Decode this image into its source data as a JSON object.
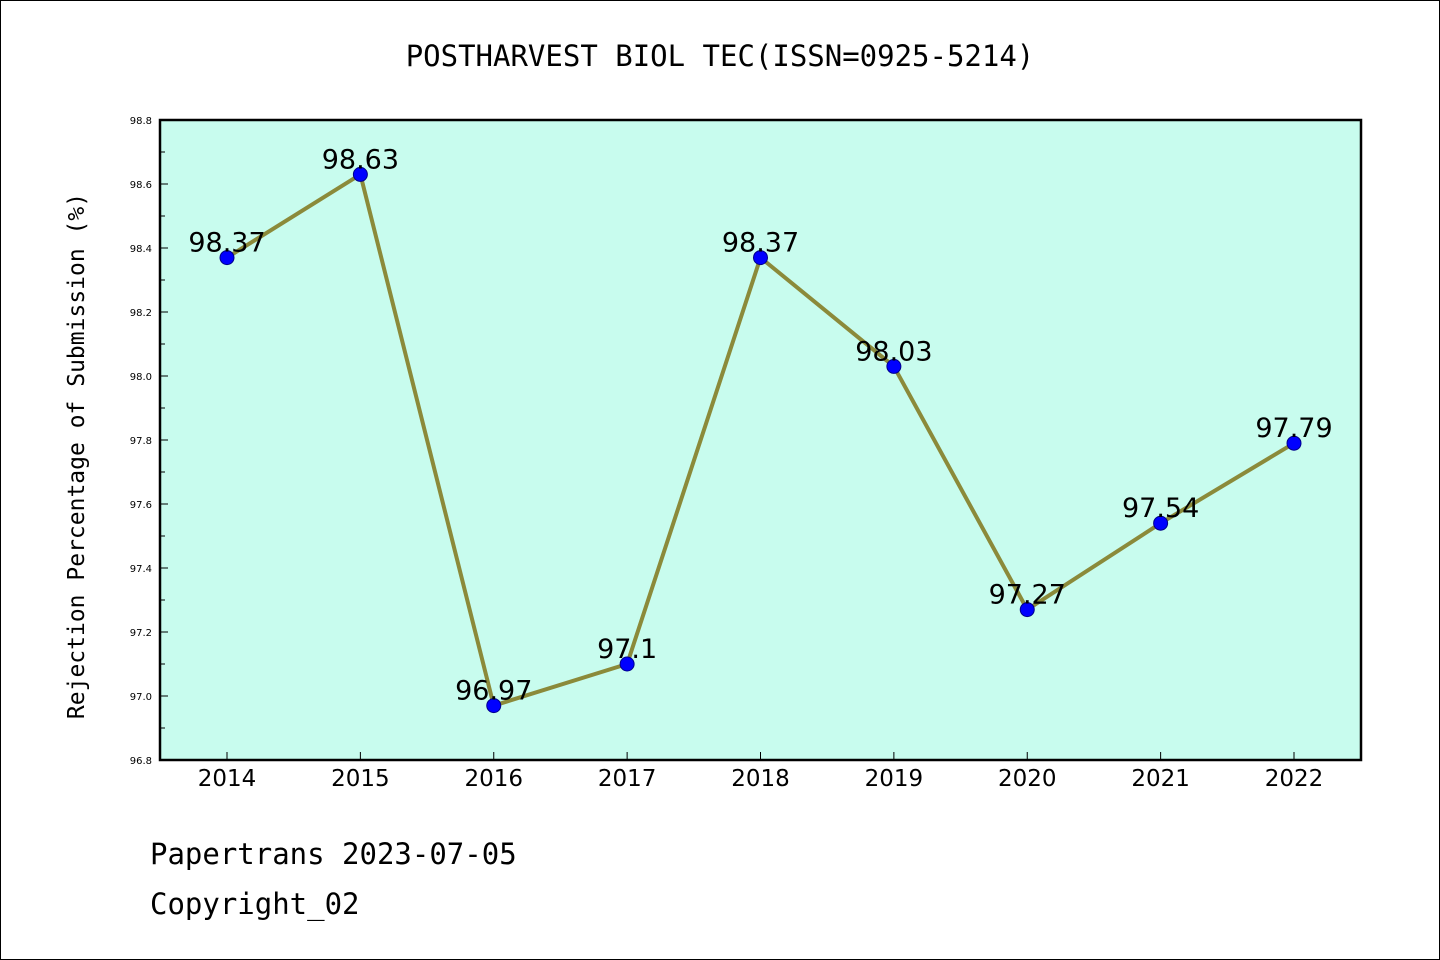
{
  "chart_data": {
    "type": "line",
    "title": "POSTHARVEST BIOL TEC(ISSN=0925-5214)",
    "ylabel": "Rejection Percentage of Submission (%)",
    "xlabel": "",
    "categories": [
      "2014",
      "2015",
      "2016",
      "2017",
      "2018",
      "2019",
      "2020",
      "2021",
      "2022"
    ],
    "values": [
      98.37,
      98.63,
      96.97,
      97.1,
      98.37,
      98.03,
      97.27,
      97.54,
      97.79
    ],
    "data_labels": [
      "98.37",
      "98.63",
      "96.97",
      "97.1",
      "98.37",
      "98.03",
      "97.27",
      "97.54",
      "97.79"
    ],
    "ylim": [
      96.8,
      98.8
    ],
    "yticks": [
      "96.8",
      "97.0",
      "97.2",
      "97.4",
      "97.6",
      "97.8",
      "98.0",
      "98.2",
      "98.4",
      "98.6",
      "98.8"
    ],
    "grid": false,
    "legend": "none",
    "colors": {
      "plot_background": "#c8fcee",
      "line": "#8b8a3a",
      "marker": "#0000ff"
    }
  },
  "footer": {
    "line1": "Papertrans 2023-07-05",
    "line2": "Copyright_02"
  }
}
